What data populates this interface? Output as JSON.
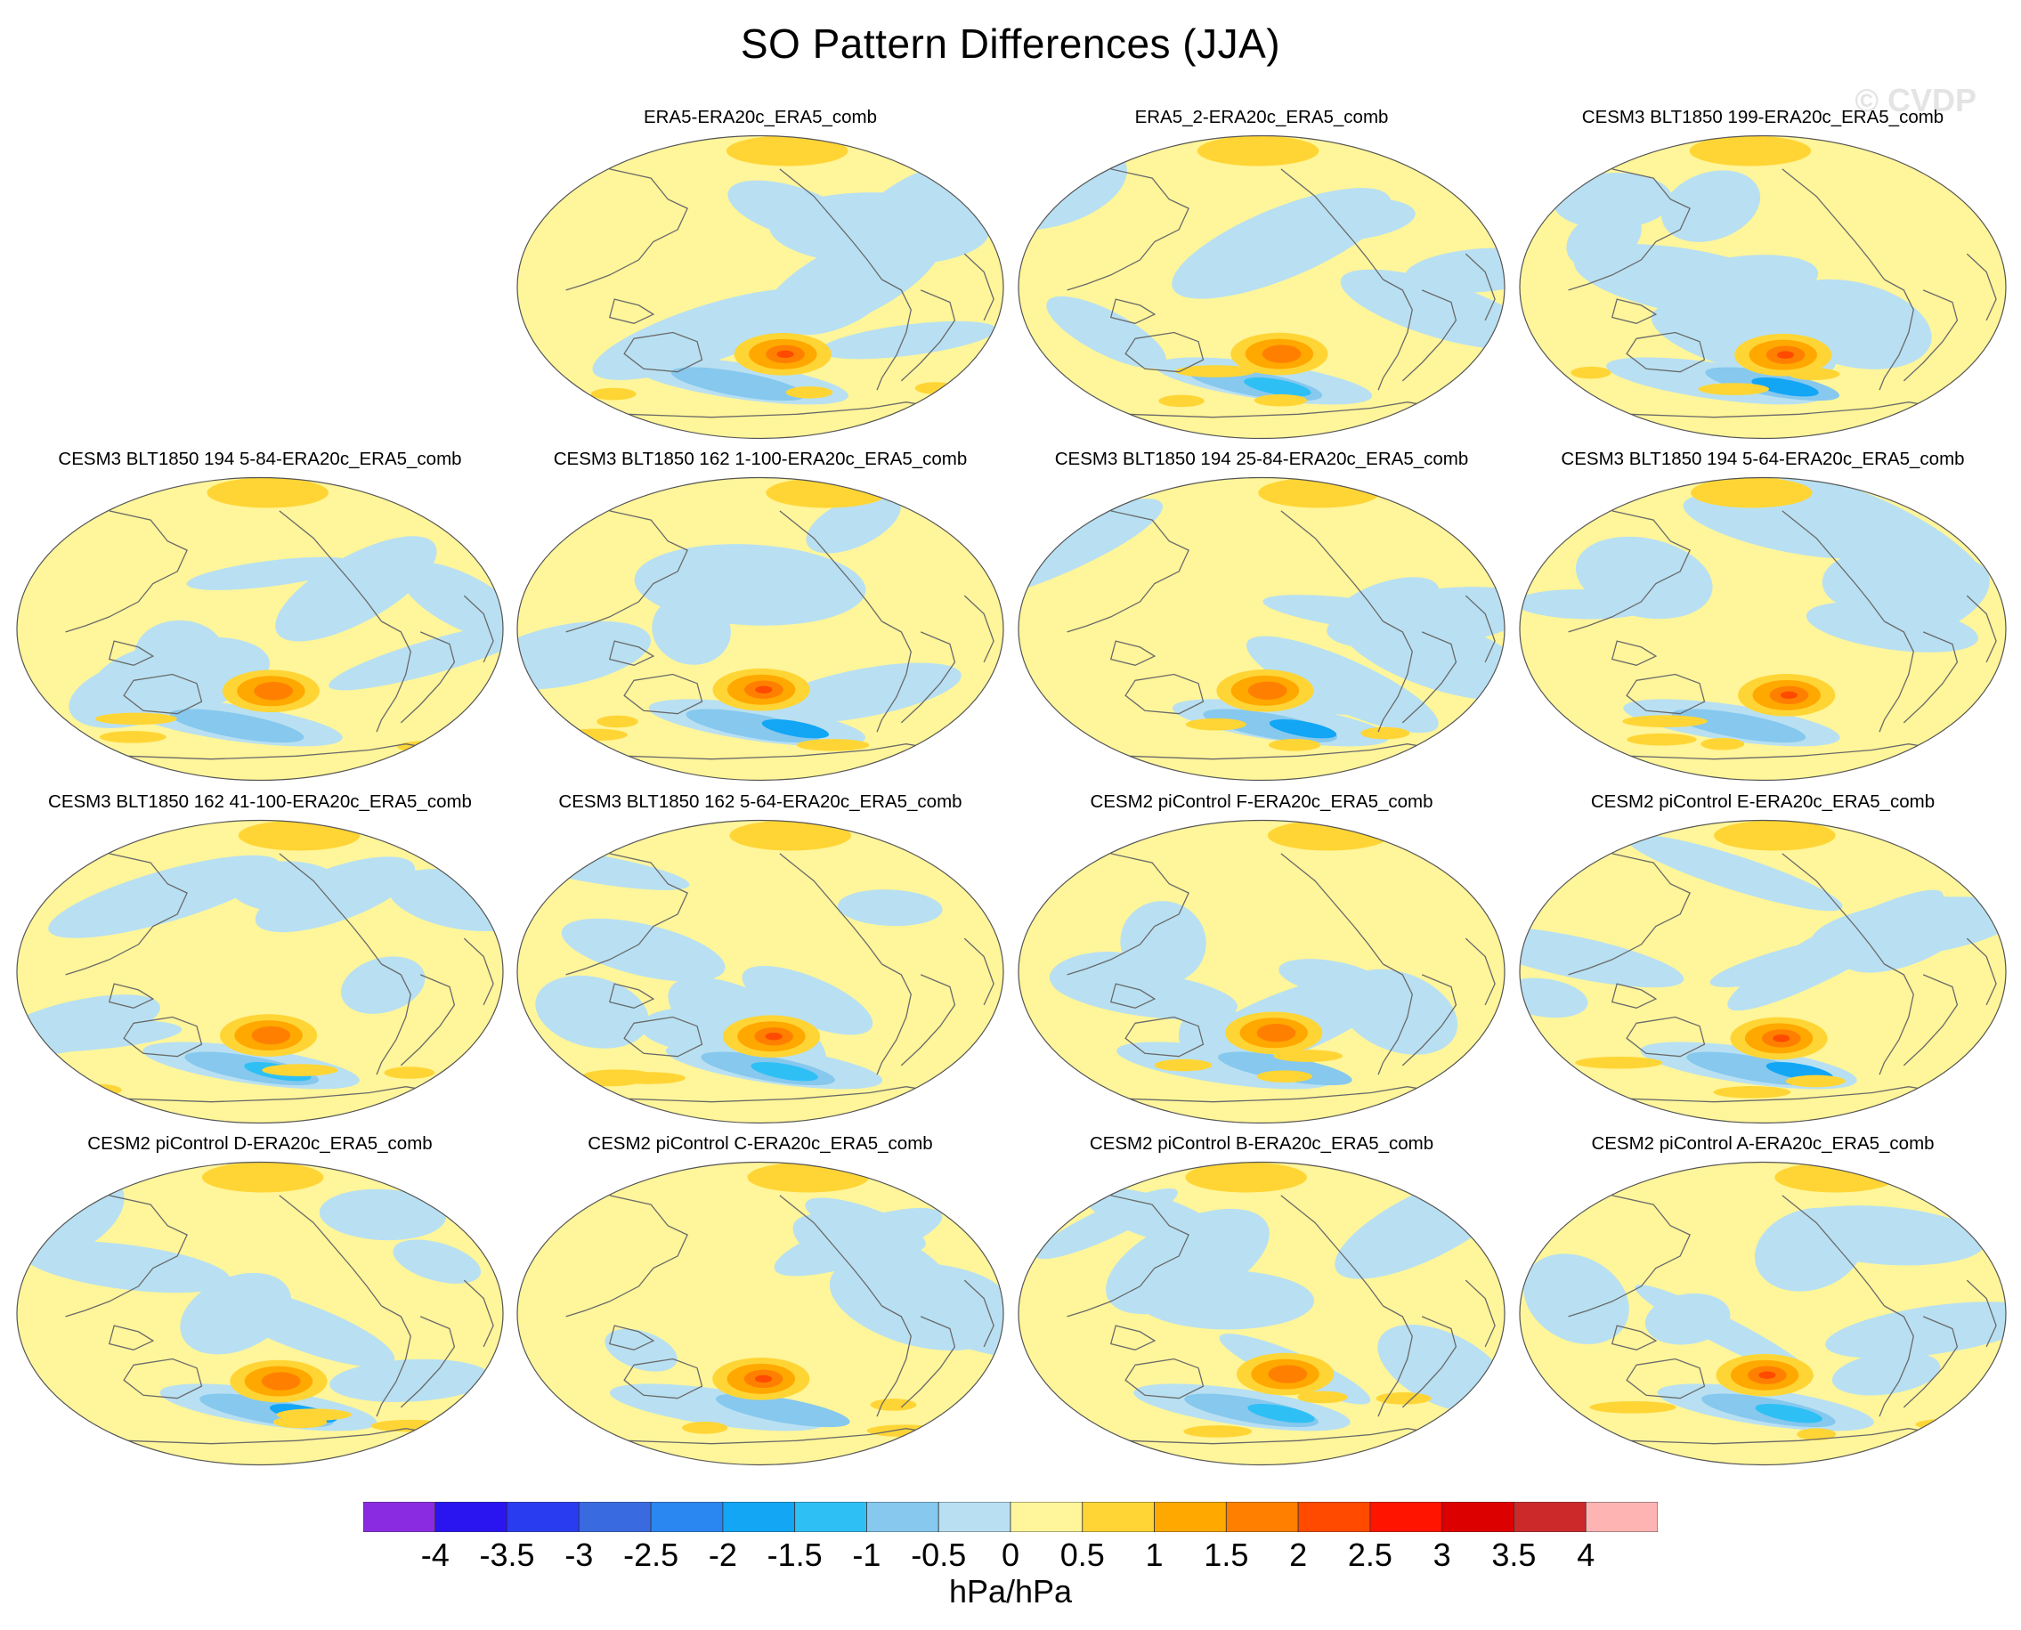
{
  "title": "SO Pattern Differences (JJA)",
  "watermark": "© CVDP",
  "colors": {
    "ocean_outline": "#555555",
    "coast": "#6a6a6a"
  },
  "panels": [
    {
      "title": "ERA5-ERA20c_ERA5_comb",
      "row": 0,
      "col": 1
    },
    {
      "title": "ERA5_2-ERA20c_ERA5_comb",
      "row": 0,
      "col": 2
    },
    {
      "title": "CESM3 BLT1850 199-ERA20c_ERA5_comb",
      "row": 0,
      "col": 3
    },
    {
      "title": "CESM3 BLT1850 194 5-84-ERA20c_ERA5_comb",
      "row": 1,
      "col": 0
    },
    {
      "title": "CESM3 BLT1850 162 1-100-ERA20c_ERA5_comb",
      "row": 1,
      "col": 1
    },
    {
      "title": "CESM3 BLT1850 194 25-84-ERA20c_ERA5_comb",
      "row": 1,
      "col": 2
    },
    {
      "title": "CESM3 BLT1850 194 5-64-ERA20c_ERA5_comb",
      "row": 1,
      "col": 3
    },
    {
      "title": "CESM3 BLT1850 162 41-100-ERA20c_ERA5_comb",
      "row": 2,
      "col": 0
    },
    {
      "title": "CESM3 BLT1850 162 5-64-ERA20c_ERA5_comb",
      "row": 2,
      "col": 1
    },
    {
      "title": "CESM2 piControl F-ERA20c_ERA5_comb",
      "row": 2,
      "col": 2
    },
    {
      "title": "CESM2 piControl E-ERA20c_ERA5_comb",
      "row": 2,
      "col": 3
    },
    {
      "title": "CESM2 piControl D-ERA20c_ERA5_comb",
      "row": 3,
      "col": 0
    },
    {
      "title": "CESM2 piControl C-ERA20c_ERA5_comb",
      "row": 3,
      "col": 1
    },
    {
      "title": "CESM2 piControl B-ERA20c_ERA5_comb",
      "row": 3,
      "col": 2
    },
    {
      "title": "CESM2 piControl A-ERA20c_ERA5_comb",
      "row": 3,
      "col": 3
    }
  ],
  "colorbar": {
    "units": "hPa/hPa",
    "labels": [
      "-4",
      "-3.5",
      "-3",
      "-2.5",
      "-2",
      "-1.5",
      "-1",
      "-0.5",
      "0",
      "0.5",
      "1",
      "1.5",
      "2",
      "2.5",
      "3",
      "3.5",
      "4"
    ],
    "colors": [
      "#8a2be2",
      "#2a14f0",
      "#2a3cf0",
      "#3a6ae0",
      "#2a86f0",
      "#12a6f5",
      "#2ec0f5",
      "#86c8ee",
      "#b8e0f2",
      "#fff59a",
      "#ffd535",
      "#ffa800",
      "#ff8000",
      "#ff4a00",
      "#ff1400",
      "#dd0000",
      "#cc2a2a",
      "#ffb4b4"
    ]
  }
}
